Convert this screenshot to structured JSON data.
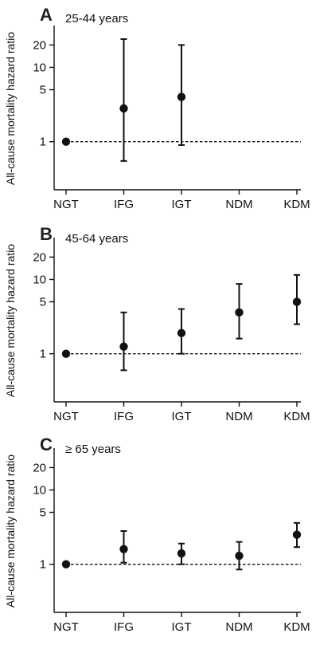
{
  "chart_data": [
    {
      "type": "scatter",
      "panel": "A",
      "subtitle": "25-44 years",
      "ylabel": "All-cause mortality hazard ratio",
      "y_scale": "log",
      "ylim": [
        0.45,
        30
      ],
      "yticks": [
        "1",
        "5",
        "10",
        "20"
      ],
      "categories": [
        "NGT",
        "IFG",
        "IGT",
        "NDM",
        "KDM"
      ],
      "reference_line": 1,
      "points": [
        {
          "category": "NGT",
          "hr": 1.0,
          "lower": null,
          "upper": null
        },
        {
          "category": "IFG",
          "hr": 2.8,
          "lower": 0.55,
          "upper": 24
        },
        {
          "category": "IGT",
          "hr": 4.0,
          "lower": 0.9,
          "upper": 20
        },
        {
          "category": "NDM",
          "hr": null,
          "lower": null,
          "upper": null
        },
        {
          "category": "KDM",
          "hr": null,
          "lower": null,
          "upper": null
        }
      ]
    },
    {
      "type": "scatter",
      "panel": "B",
      "subtitle": "45-64 years",
      "ylabel": "All-cause mortality hazard ratio",
      "y_scale": "log",
      "ylim": [
        0.45,
        30
      ],
      "yticks": [
        "1",
        "5",
        "10",
        "20"
      ],
      "categories": [
        "NGT",
        "IFG",
        "IGT",
        "NDM",
        "KDM"
      ],
      "reference_line": 1,
      "points": [
        {
          "category": "NGT",
          "hr": 1.0,
          "lower": null,
          "upper": null
        },
        {
          "category": "IFG",
          "hr": 1.25,
          "lower": 0.6,
          "upper": 3.6
        },
        {
          "category": "IGT",
          "hr": 1.9,
          "lower": 1.0,
          "upper": 4.0
        },
        {
          "category": "NDM",
          "hr": 3.6,
          "lower": 1.6,
          "upper": 8.7
        },
        {
          "category": "KDM",
          "hr": 5.0,
          "lower": 2.5,
          "upper": 11.5
        }
      ]
    },
    {
      "type": "scatter",
      "panel": "C",
      "subtitle": "≥ 65 years",
      "ylabel": "All-cause mortality hazard ratio",
      "y_scale": "log",
      "ylim": [
        0.45,
        30
      ],
      "yticks": [
        "1",
        "5",
        "10",
        "20"
      ],
      "categories": [
        "NGT",
        "IFG",
        "IGT",
        "NDM",
        "KDM"
      ],
      "reference_line": 1,
      "points": [
        {
          "category": "NGT",
          "hr": 1.0,
          "lower": null,
          "upper": null
        },
        {
          "category": "IFG",
          "hr": 1.6,
          "lower": 1.05,
          "upper": 2.8
        },
        {
          "category": "IGT",
          "hr": 1.4,
          "lower": 1.0,
          "upper": 1.9
        },
        {
          "category": "NDM",
          "hr": 1.3,
          "lower": 0.85,
          "upper": 2.0
        },
        {
          "category": "KDM",
          "hr": 2.5,
          "lower": 1.7,
          "upper": 3.6
        }
      ]
    }
  ]
}
